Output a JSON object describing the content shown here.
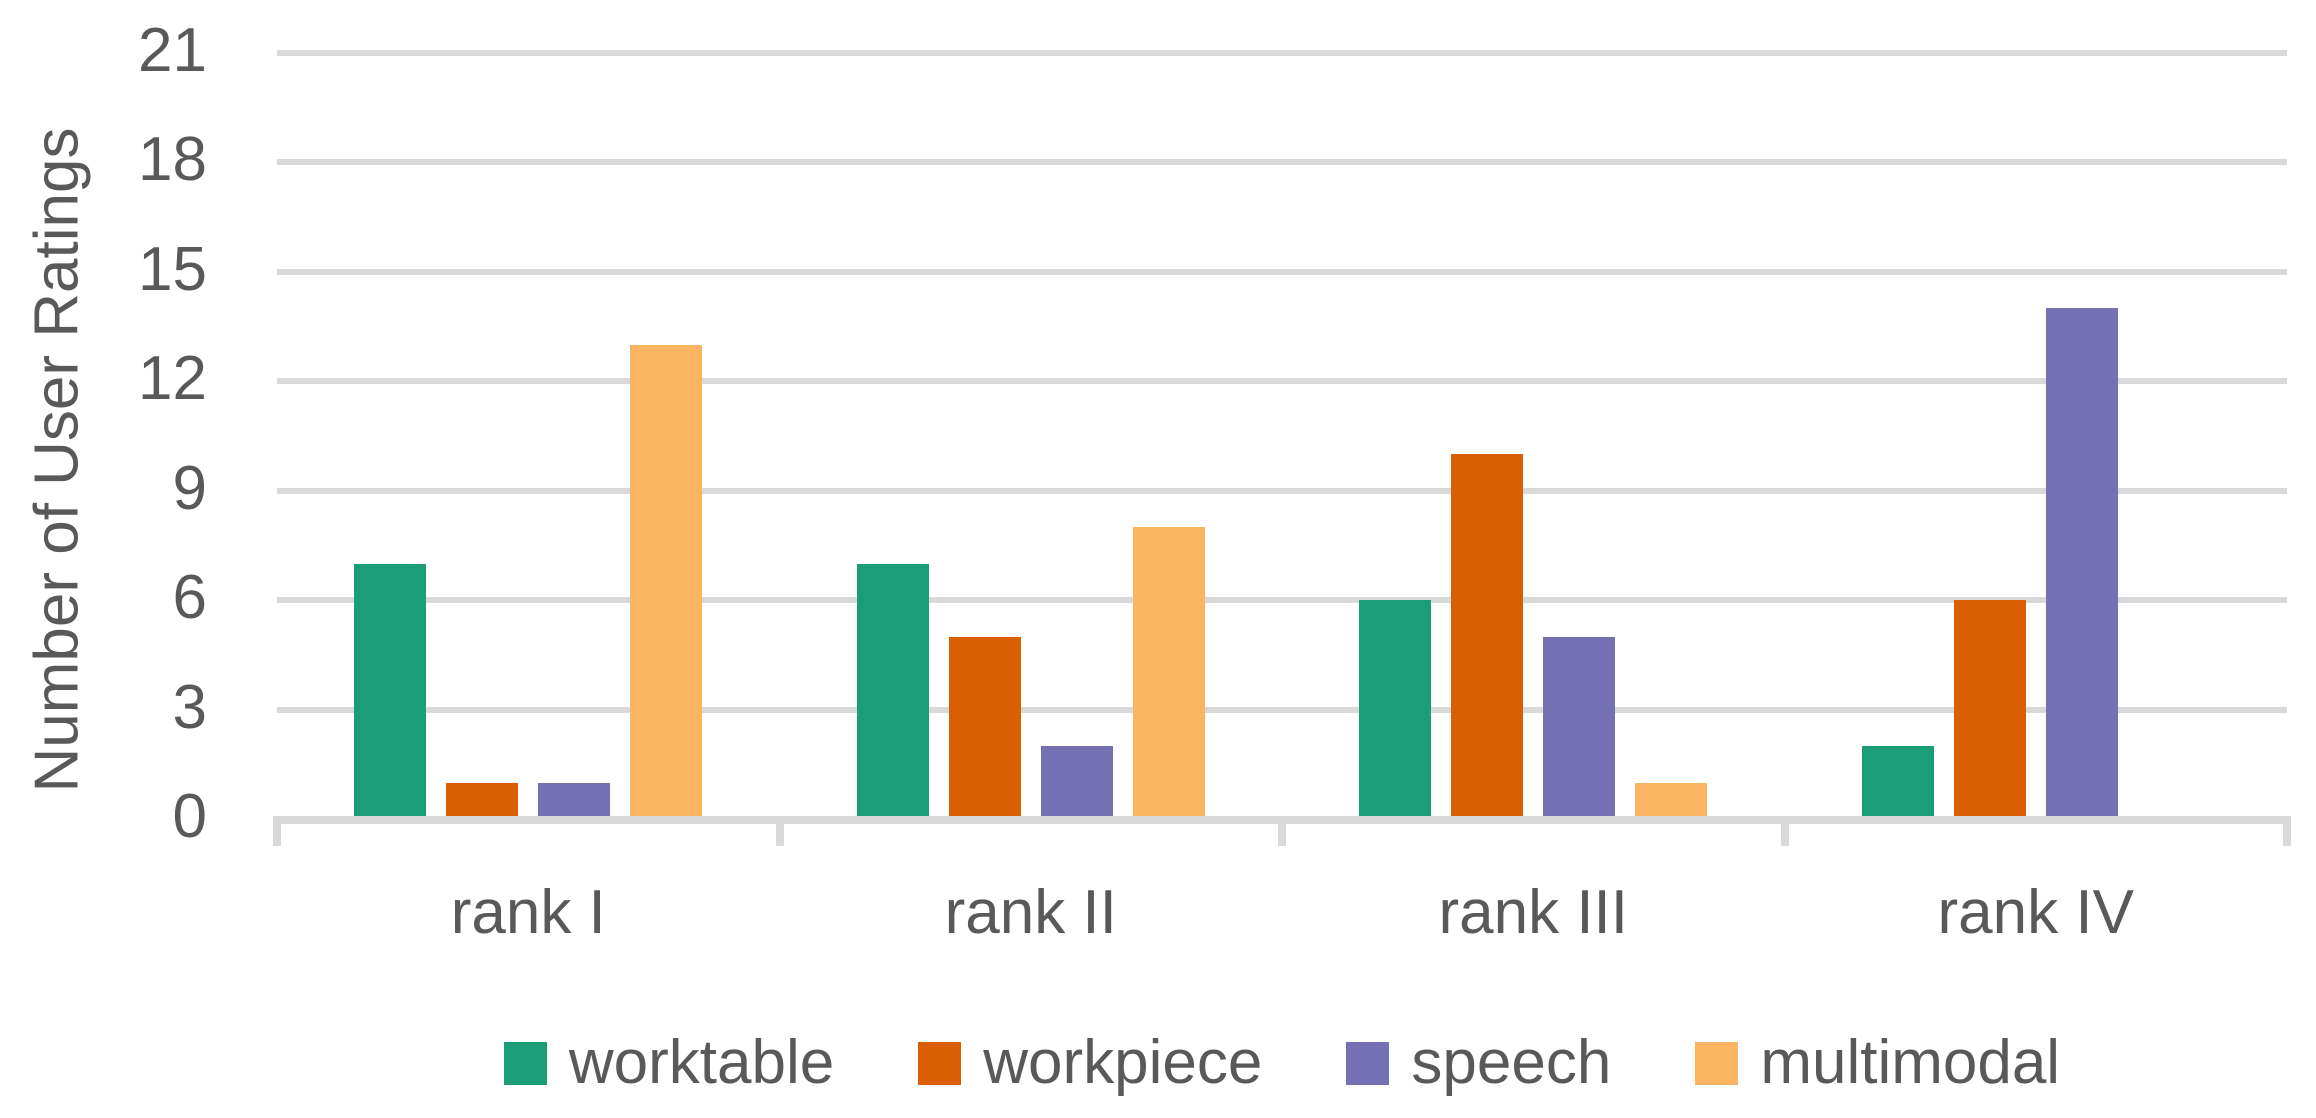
{
  "chart_data": {
    "type": "bar",
    "title": "",
    "categories": [
      "rank I",
      "rank II",
      "rank III",
      "rank IV"
    ],
    "series": [
      {
        "name": "worktable",
        "color": "#1B9E77",
        "values": [
          7,
          7,
          6,
          2
        ]
      },
      {
        "name": "workpiece",
        "color": "#D95F02",
        "values": [
          1,
          5,
          10,
          6
        ]
      },
      {
        "name": "speech",
        "color": "#7570B3",
        "values": [
          1,
          2,
          5,
          14
        ]
      },
      {
        "name": "multimodal",
        "color": "#FBB462",
        "values": [
          13,
          8,
          1,
          0
        ]
      }
    ],
    "xlabel": "",
    "ylabel": "Number of User Ratings",
    "ylim": [
      0,
      21
    ],
    "yticks": [
      0,
      3,
      6,
      9,
      12,
      15,
      18,
      21
    ],
    "grid": true,
    "legend": [
      "worktable",
      "workpiece",
      "speech",
      "multimodal"
    ],
    "legend_position": "bottom"
  },
  "styles": {
    "background": "#FFFFFF",
    "text_color": "#595959",
    "grid_color": "#D9D9D9",
    "axis_color": "#D9D9D9"
  }
}
